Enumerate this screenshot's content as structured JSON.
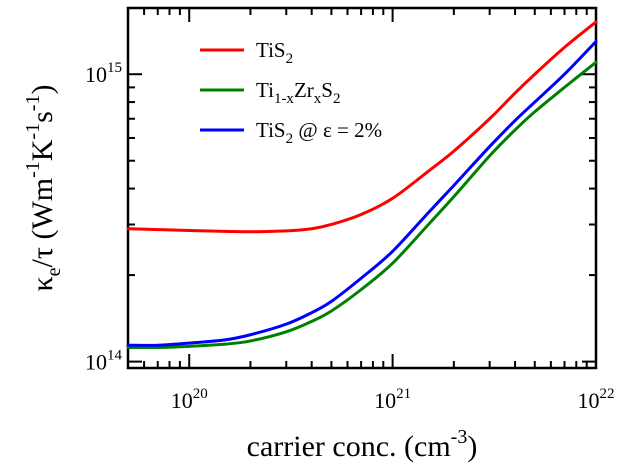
{
  "chart_data": {
    "type": "line",
    "x_scale": "log",
    "y_scale": "log",
    "xlim": [
      5e+19,
      1e+22
    ],
    "ylim": [
      95000000000000.0,
      1700000000000000.0
    ],
    "x_ticks": [
      {
        "value": 1e+20,
        "base": "10",
        "exp": "20"
      },
      {
        "value": 1e+21,
        "base": "10",
        "exp": "21"
      },
      {
        "value": 1e+22,
        "base": "10",
        "exp": "22"
      }
    ],
    "y_ticks": [
      {
        "value": 100000000000000.0,
        "base": "10",
        "exp": "14"
      },
      {
        "value": 1000000000000000.0,
        "base": "10",
        "exp": "15"
      }
    ],
    "xlabel": {
      "main": "carrier conc. (cm",
      "sup": "-3",
      "tail": ")"
    },
    "ylabel": {
      "kappa": "κ",
      "kappa_sub": "e",
      "rest": "/τ (Wm",
      "sup1": "-1",
      "K": "K",
      "sup2": "-1",
      "s": "s",
      "sup3": "-1",
      "tail": ")"
    },
    "grid": false,
    "legend_position": "top-left",
    "series": [
      {
        "name": "TiS2",
        "legend": {
          "main": "TiS",
          "sub": "2"
        },
        "color": "#ff0000",
        "x": [
          5e+19,
          7e+19,
          1e+20,
          1.5e+20,
          2e+20,
          3e+20,
          4e+20,
          5e+20,
          7e+20,
          1e+21,
          1.5e+21,
          2e+21,
          3e+21,
          4e+21,
          5e+21,
          7e+21,
          1e+22
        ],
        "y": [
          290000000000000.0,
          288000000000000.0,
          286000000000000.0,
          284000000000000.0,
          283000000000000.0,
          285000000000000.0,
          290000000000000.0,
          300000000000000.0,
          325000000000000.0,
          370000000000000.0,
          460000000000000.0,
          540000000000000.0,
          700000000000000.0,
          860000000000000.0,
          1000000000000000.0,
          1240000000000000.0,
          1520000000000000.0
        ]
      },
      {
        "name": "Ti1-xZrxS2",
        "legend": {
          "a": "Ti",
          "a_sub": "1-x",
          "b": "Zr",
          "b_sub": "x",
          "c": "S",
          "c_sub": "2"
        },
        "color": "#008000",
        "x": [
          5e+19,
          7e+19,
          1e+20,
          1.5e+20,
          2e+20,
          3e+20,
          4e+20,
          5e+20,
          7e+20,
          1e+21,
          1.5e+21,
          2e+21,
          3e+21,
          4e+21,
          5e+21,
          7e+21,
          1e+22
        ],
        "y": [
          112000000000000.0,
          112000000000000.0,
          113000000000000.0,
          115000000000000.0,
          118000000000000.0,
          127000000000000.0,
          138000000000000.0,
          150000000000000.0,
          178000000000000.0,
          220000000000000.0,
          300000000000000.0,
          375000000000000.0,
          520000000000000.0,
          640000000000000.0,
          740000000000000.0,
          900000000000000.0,
          1100000000000000.0
        ]
      },
      {
        "name": "TiS2 @ ε = 2%",
        "legend": {
          "main": "TiS",
          "sub": "2",
          "tail": " @ ε = 2%"
        },
        "color": "#0000ff",
        "x": [
          5e+19,
          7e+19,
          1e+20,
          1.5e+20,
          2e+20,
          3e+20,
          4e+20,
          5e+20,
          7e+20,
          1e+21,
          1.5e+21,
          2e+21,
          3e+21,
          4e+21,
          5e+21,
          7e+21,
          1e+22
        ],
        "y": [
          114000000000000.0,
          114000000000000.0,
          116000000000000.0,
          119000000000000.0,
          124000000000000.0,
          135000000000000.0,
          148000000000000.0,
          162000000000000.0,
          195000000000000.0,
          242000000000000.0,
          330000000000000.0,
          410000000000000.0,
          560000000000000.0,
          690000000000000.0,
          800000000000000.0,
          1000000000000000.0,
          1300000000000000.0
        ]
      }
    ]
  }
}
